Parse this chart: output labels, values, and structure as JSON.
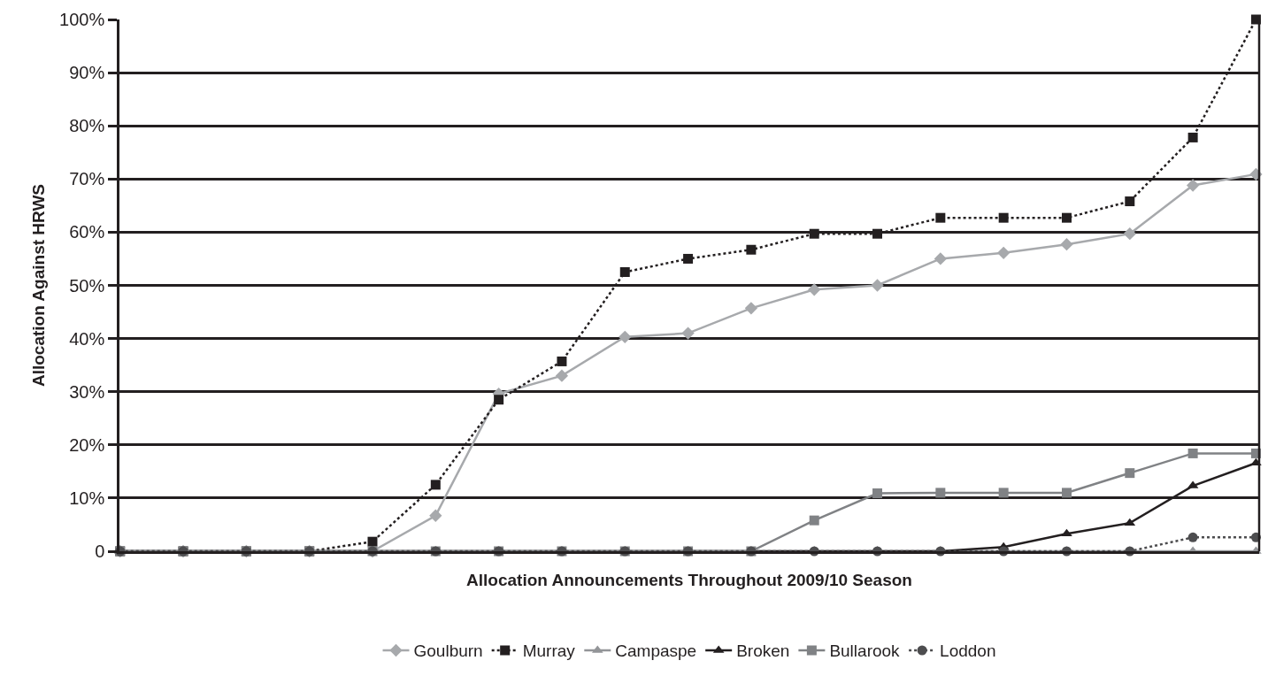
{
  "chart_data": {
    "type": "line",
    "xlabel": "Allocation Announcements Throughout 2009/10 Season",
    "ylabel": "Allocation Against HRWS",
    "categories": [
      null,
      null,
      null,
      null,
      null,
      null,
      null,
      null,
      null,
      null,
      null,
      null,
      null,
      null,
      null,
      null,
      null,
      null,
      null
    ],
    "ylim": [
      0,
      100
    ],
    "yticks": [
      {
        "value": 0,
        "label": "0"
      },
      {
        "value": 10,
        "label": "10%"
      },
      {
        "value": 20,
        "label": "20%"
      },
      {
        "value": 30,
        "label": "30%"
      },
      {
        "value": 40,
        "label": "40%"
      },
      {
        "value": 50,
        "label": "50%"
      },
      {
        "value": 60,
        "label": "60%"
      },
      {
        "value": 70,
        "label": "70%"
      },
      {
        "value": 80,
        "label": "80%"
      },
      {
        "value": 90,
        "label": "90%"
      },
      {
        "value": 100,
        "label": "100%"
      }
    ],
    "grid": "y",
    "legend": "bottom",
    "series": [
      {
        "name": "Goulburn",
        "color": "#a7a9ac",
        "marker": "diamond",
        "line_style": "solid",
        "values": [
          0,
          0,
          0,
          0,
          0,
          6.7,
          29.6,
          33,
          40.3,
          41,
          45.7,
          49.2,
          50,
          55,
          56.1,
          57.7,
          59.7,
          68.8,
          70.9
        ]
      },
      {
        "name": "Murray",
        "color": "#231f20",
        "marker": "square",
        "line_style": "dotted",
        "values": [
          0,
          0,
          0,
          0,
          1.8,
          12.5,
          28.5,
          35.7,
          52.5,
          55,
          56.7,
          59.7,
          59.7,
          62.7,
          62.7,
          62.7,
          65.8,
          77.8,
          100
        ]
      },
      {
        "name": "Campaspe",
        "color": "#939598",
        "marker": "triangle",
        "line_style": "solid",
        "values": [
          0,
          0,
          0,
          0,
          0,
          0,
          0,
          0,
          0,
          0,
          0,
          0,
          0,
          0,
          0,
          0,
          0,
          0,
          0
        ]
      },
      {
        "name": "Broken",
        "color": "#231f20",
        "marker": "triangle",
        "line_style": "solid",
        "values": [
          0,
          0,
          0,
          0,
          0,
          0,
          0,
          0,
          0,
          0,
          0,
          0,
          0,
          0,
          0.8,
          3.3,
          5.3,
          12.3,
          16.6
        ]
      },
      {
        "name": "Bullarook",
        "color": "#808285",
        "marker": "square",
        "line_style": "solid",
        "values": [
          0,
          0,
          0,
          0,
          0,
          0,
          0,
          0,
          0,
          0,
          0,
          5.8,
          10.9,
          11,
          11,
          11,
          14.7,
          18.4,
          18.4
        ]
      },
      {
        "name": "Loddon",
        "color": "#4d4d4f",
        "marker": "circle",
        "line_style": "dotted",
        "values": [
          0,
          0,
          0,
          0,
          0,
          0,
          0,
          0,
          0,
          0,
          0,
          0,
          0,
          0,
          0,
          0,
          0,
          2.6,
          2.6
        ]
      }
    ]
  }
}
